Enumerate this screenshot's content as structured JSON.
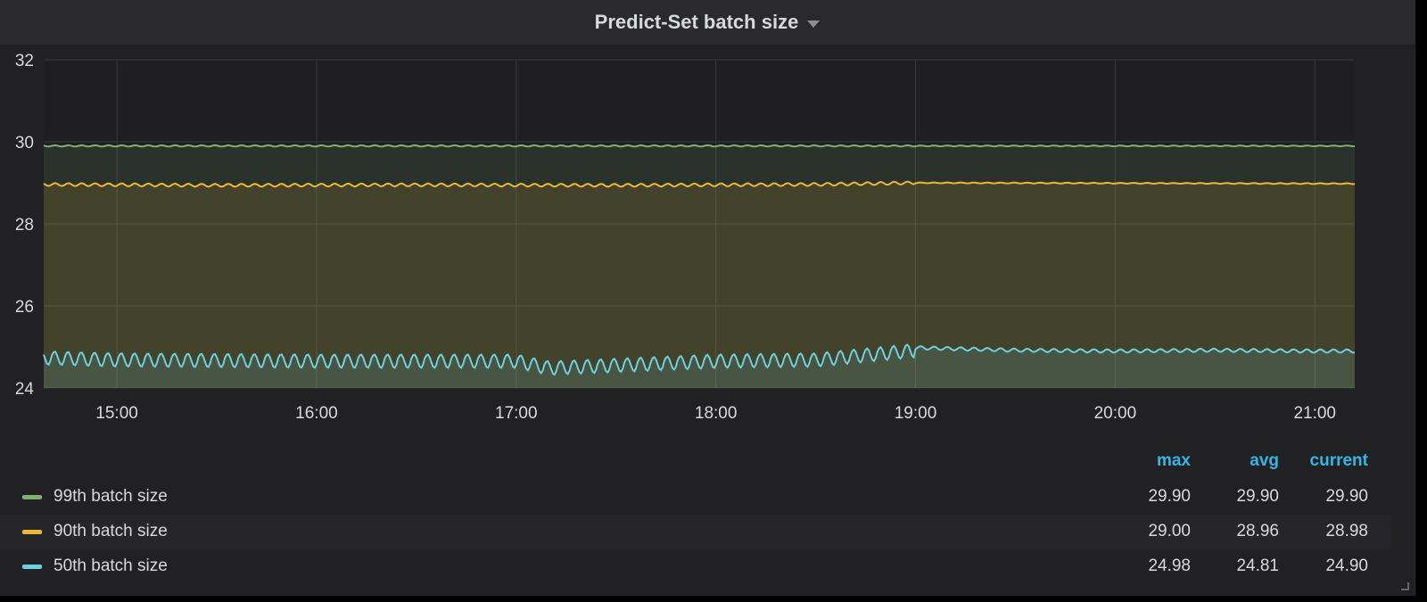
{
  "panel": {
    "title": "Predict-Set batch size"
  },
  "chart_data": {
    "type": "area",
    "title": "Predict-Set batch size",
    "xlabel": "",
    "ylabel": "",
    "ylim": [
      24,
      32
    ],
    "yticks": [
      "24",
      "26",
      "28",
      "30",
      "32"
    ],
    "xlim": [
      "14:38",
      "21:12"
    ],
    "xticks": [
      "15:00",
      "16:00",
      "17:00",
      "18:00",
      "19:00",
      "20:00",
      "21:00"
    ],
    "grid": true,
    "legend_placement": "bottom",
    "series": [
      {
        "name": "99th batch size",
        "color": "#7eb26d",
        "fill": "#2a3a30",
        "x": [
          "14:38",
          "19:00",
          "21:12"
        ],
        "values": [
          29.9,
          29.9,
          29.9
        ],
        "max": "29.90",
        "avg": "29.90",
        "current": "29.90"
      },
      {
        "name": "90th batch size",
        "color": "#eab839",
        "fill": "#47412e",
        "x": [
          "14:38",
          "15:30",
          "16:30",
          "17:30",
          "18:30",
          "19:00",
          "21:12"
        ],
        "values": [
          28.96,
          28.94,
          28.95,
          28.94,
          28.96,
          29.0,
          28.98
        ],
        "max": "29.00",
        "avg": "28.96",
        "current": "28.98"
      },
      {
        "name": "50th batch size",
        "color": "#6ed0e0",
        "fill": "#33403f",
        "x": [
          "14:38",
          "15:00",
          "16:00",
          "17:00",
          "17:10",
          "18:00",
          "18:30",
          "19:00",
          "19:30",
          "20:00",
          "20:30",
          "21:00",
          "21:12"
        ],
        "values": [
          24.8,
          24.75,
          24.72,
          24.72,
          24.55,
          24.72,
          24.75,
          24.98,
          24.92,
          24.9,
          24.92,
          24.9,
          24.9
        ],
        "max": "24.98",
        "avg": "24.81",
        "current": "24.90"
      }
    ]
  },
  "legend": {
    "headers": {
      "max": "max",
      "avg": "avg",
      "current": "current"
    }
  },
  "icons": {
    "title_caret": "caret-down-icon",
    "resize": "resize-handle-icon"
  }
}
